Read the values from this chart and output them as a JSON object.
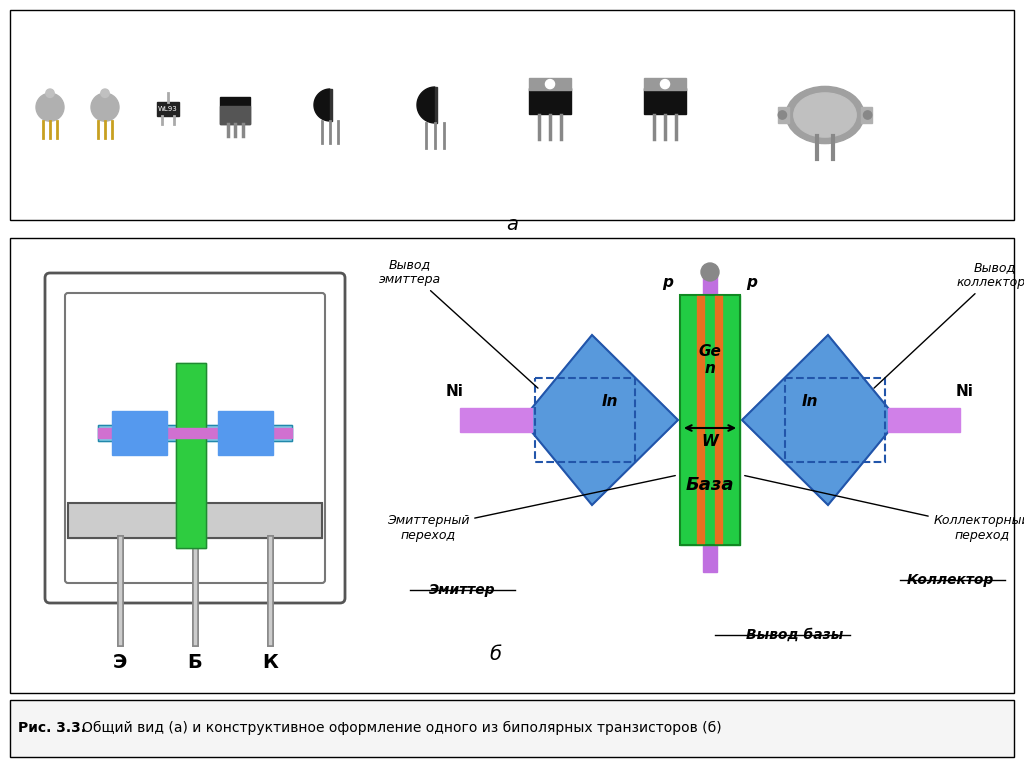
{
  "title": "Рис. 3.3.",
  "caption": "Общий вид (а) и конструктивное оформление одного из биполярных транзисторов (б)",
  "label_a": "а",
  "label_b": "б",
  "bg_color": "#ffffff",
  "labels": {
    "emitter_lead": "Вывод\nэмиттера",
    "collector_lead": "Вывод\nколлектора",
    "base_lead": "Вывод базы",
    "emitter_junction": "Эмиттерный\nпереход",
    "collector_junction": "Коллекторный\nпереход",
    "emitter": "Эмиттер",
    "collector": "Коллектор",
    "base": "База",
    "ge_n": "Ge\nn",
    "in_left": "In",
    "in_right": "In",
    "ni_left": "Ni",
    "ni_right": "Ni",
    "w": "W",
    "p_left_top": "p",
    "p_right_top": "p",
    "e_label": "Э",
    "b_label": "Б",
    "k_label": "К"
  }
}
